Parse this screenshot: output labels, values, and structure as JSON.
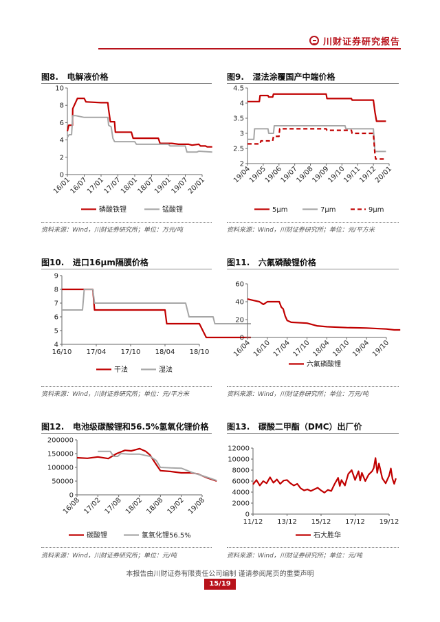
{
  "header": {
    "brand": "川财证券研究报告"
  },
  "footer": {
    "disclaimer": "本报告由川财证券有限责任公司编制 谨请参阅尾页的重要声明",
    "page": "15/19"
  },
  "figures": [
    {
      "id": "fig8",
      "number": "图8.",
      "title": "电解液价格",
      "source": "资料来源：Wind，川财证券研究所；单位：万元/吨"
    },
    {
      "id": "fig9",
      "number": "图9.",
      "title": "湿法涂覆国产中端价格",
      "source": "资料来源：Wind，川财证券研究所；单位：元/平方米"
    },
    {
      "id": "fig10",
      "number": "图10.",
      "title": "进口16μm隔膜价格",
      "source": "资料来源：Wind，川财证券研究所；单位：元/平方米"
    },
    {
      "id": "fig11",
      "number": "图11.",
      "title": "六氟磷酸锂价格",
      "source": "资料来源：Wind，川财证券研究所；单位：万元/吨"
    },
    {
      "id": "fig12",
      "number": "图12.",
      "title": "电池级碳酸锂和56.5%氢氧化锂价格",
      "source": "资料来源：Wind，川财证券研究所；单位：元/吨"
    },
    {
      "id": "fig13",
      "number": "图13.",
      "title": "碳酸二甲酯（DMC）出厂价",
      "source": "资料来源：Wind，川财证券研究所；单位：元/吨"
    }
  ],
  "chart_data": [
    {
      "id": "fig8",
      "type": "line",
      "x_ticks": [
        "16/01",
        "16/07",
        "17/01",
        "17/07",
        "18/01",
        "18/07",
        "19/01",
        "19/07",
        "20/01"
      ],
      "ylim": [
        0,
        10
      ],
      "y_ticks": [
        0,
        2,
        4,
        6,
        8,
        10
      ],
      "legend_position": "bottom",
      "grid": false,
      "series": [
        {
          "name": "磷酸铁锂",
          "color": "#c00000",
          "dash": "solid",
          "points": [
            [
              0,
              5.0
            ],
            [
              0.08,
              5.7
            ],
            [
              0.3,
              5.7
            ],
            [
              0.32,
              7.6
            ],
            [
              0.6,
              8.8
            ],
            [
              1.0,
              8.8
            ],
            [
              1.1,
              8.4
            ],
            [
              2.0,
              8.3
            ],
            [
              2.4,
              8.3
            ],
            [
              2.45,
              7.5
            ],
            [
              2.55,
              6.1
            ],
            [
              2.6,
              6.1
            ],
            [
              2.8,
              6.1
            ],
            [
              2.85,
              4.9
            ],
            [
              3.8,
              4.9
            ],
            [
              3.9,
              4.2
            ],
            [
              4.7,
              4.2
            ],
            [
              5.4,
              4.2
            ],
            [
              5.5,
              3.6
            ],
            [
              6.2,
              3.6
            ],
            [
              6.6,
              3.5
            ],
            [
              7.2,
              3.5
            ],
            [
              7.4,
              3.4
            ],
            [
              7.8,
              3.5
            ],
            [
              7.9,
              3.3
            ],
            [
              8.2,
              3.3
            ],
            [
              8.3,
              3.2
            ],
            [
              8.6,
              3.2
            ]
          ]
        },
        {
          "name": "锰酸锂",
          "color": "#a6a6a6",
          "dash": "solid",
          "points": [
            [
              0,
              4.3
            ],
            [
              0.1,
              4.6
            ],
            [
              0.25,
              4.6
            ],
            [
              0.32,
              6.8
            ],
            [
              0.5,
              6.8
            ],
            [
              1.0,
              6.6
            ],
            [
              2.0,
              6.6
            ],
            [
              2.4,
              6.6
            ],
            [
              2.45,
              5.7
            ],
            [
              2.6,
              5.5
            ],
            [
              2.7,
              4.2
            ],
            [
              2.8,
              3.8
            ],
            [
              4.0,
              3.8
            ],
            [
              4.1,
              3.5
            ],
            [
              6.0,
              3.5
            ],
            [
              6.1,
              3.3
            ],
            [
              7.0,
              3.3
            ],
            [
              7.1,
              2.6
            ],
            [
              7.7,
              2.6
            ],
            [
              7.8,
              2.7
            ],
            [
              8.6,
              2.6
            ]
          ]
        }
      ]
    },
    {
      "id": "fig9",
      "type": "line",
      "x_ticks": [
        "19/04",
        "19/05",
        "19/06",
        "19/07",
        "19/08",
        "19/09",
        "19/10",
        "19/11",
        "19/12",
        "20/01"
      ],
      "ylim": [
        2,
        4.5
      ],
      "y_ticks": [
        2,
        2.5,
        3,
        3.5,
        4,
        4.5
      ],
      "legend_position": "bottom",
      "grid": false,
      "series": [
        {
          "name": "5μm",
          "color": "#c00000",
          "dash": "solid",
          "points": [
            [
              0,
              4.05
            ],
            [
              0.75,
              4.05
            ],
            [
              0.8,
              4.25
            ],
            [
              1.3,
              4.25
            ],
            [
              1.35,
              4.2
            ],
            [
              1.6,
              4.2
            ],
            [
              1.65,
              4.3
            ],
            [
              5.0,
              4.3
            ],
            [
              5.05,
              4.15
            ],
            [
              6.6,
              4.15
            ],
            [
              6.65,
              4.1
            ],
            [
              8.0,
              4.1
            ],
            [
              8.1,
              3.7
            ],
            [
              8.2,
              3.4
            ],
            [
              8.8,
              3.4
            ]
          ]
        },
        {
          "name": "7μm",
          "color": "#a6a6a6",
          "dash": "solid",
          "points": [
            [
              0,
              2.8
            ],
            [
              0.4,
              2.8
            ],
            [
              0.45,
              3.15
            ],
            [
              1.3,
              3.15
            ],
            [
              1.35,
              3.0
            ],
            [
              1.65,
              3.0
            ],
            [
              1.7,
              3.25
            ],
            [
              6.2,
              3.25
            ],
            [
              6.25,
              3.15
            ],
            [
              8.0,
              3.15
            ],
            [
              8.1,
              2.4
            ],
            [
              8.8,
              2.4
            ]
          ]
        },
        {
          "name": "9μm",
          "color": "#c00000",
          "dash": "dash",
          "points": [
            [
              0,
              2.65
            ],
            [
              0.8,
              2.65
            ],
            [
              0.85,
              2.75
            ],
            [
              1.6,
              2.75
            ],
            [
              1.65,
              2.9
            ],
            [
              2.0,
              2.9
            ],
            [
              2.05,
              3.15
            ],
            [
              5.0,
              3.15
            ],
            [
              5.05,
              3.1
            ],
            [
              6.6,
              3.1
            ],
            [
              6.65,
              3.0
            ],
            [
              8.0,
              3.0
            ],
            [
              8.1,
              2.3
            ],
            [
              8.15,
              2.15
            ],
            [
              8.8,
              2.15
            ]
          ]
        }
      ]
    },
    {
      "id": "fig10",
      "type": "line",
      "x_ticks": [
        "16/10",
        "17/04",
        "17/10",
        "18/04",
        "18/10"
      ],
      "ylim": [
        4,
        9
      ],
      "y_ticks": [
        4,
        5,
        6,
        7,
        8,
        9
      ],
      "legend_position": "bottom",
      "grid": false,
      "series": [
        {
          "name": "干法",
          "color": "#c00000",
          "dash": "solid",
          "points": [
            [
              0,
              8
            ],
            [
              0.9,
              8
            ],
            [
              0.95,
              6.5
            ],
            [
              3.0,
              6.5
            ],
            [
              3.05,
              5.5
            ],
            [
              4.0,
              5.5
            ],
            [
              4.2,
              4.5
            ],
            [
              5.5,
              4.5
            ]
          ]
        },
        {
          "name": "湿法",
          "color": "#a6a6a6",
          "dash": "solid",
          "points": [
            [
              0,
              6.5
            ],
            [
              0.6,
              6.5
            ],
            [
              0.65,
              8
            ],
            [
              0.9,
              8
            ],
            [
              0.95,
              7.0
            ],
            [
              3.6,
              7.0
            ],
            [
              3.7,
              6.0
            ],
            [
              4.4,
              6.0
            ],
            [
              4.45,
              5.5
            ],
            [
              5.5,
              5.5
            ]
          ]
        }
      ]
    },
    {
      "id": "fig11",
      "type": "line",
      "x_ticks": [
        "16/04",
        "16/10",
        "17/04",
        "17/10",
        "18/04",
        "18/10",
        "19/04",
        "19/10"
      ],
      "ylim": [
        0,
        60
      ],
      "y_ticks": [
        0,
        20,
        40,
        60
      ],
      "legend_position": "bottom",
      "grid": false,
      "series": [
        {
          "name": "六氟磷酸锂",
          "color": "#c00000",
          "dash": "solid",
          "points": [
            [
              0,
              43
            ],
            [
              0.2,
              42
            ],
            [
              0.6,
              40
            ],
            [
              0.8,
              37
            ],
            [
              1.0,
              40
            ],
            [
              1.6,
              40
            ],
            [
              1.7,
              34
            ],
            [
              1.8,
              32
            ],
            [
              1.9,
              24
            ],
            [
              2.0,
              19
            ],
            [
              2.2,
              17
            ],
            [
              3.0,
              16
            ],
            [
              3.5,
              13
            ],
            [
              4.0,
              12
            ],
            [
              5.0,
              11
            ],
            [
              6.0,
              10.5
            ],
            [
              7.0,
              9.5
            ],
            [
              7.4,
              8.5
            ],
            [
              7.7,
              8.5
            ]
          ]
        }
      ]
    },
    {
      "id": "fig12",
      "type": "line",
      "x_ticks": [
        "16/08",
        "17/02",
        "17/08",
        "18/02",
        "18/08",
        "19/02",
        "19/08"
      ],
      "ylim": [
        0,
        200000
      ],
      "y_ticks": [
        0,
        50000,
        100000,
        150000,
        200000
      ],
      "legend_position": "bottom",
      "grid": false,
      "series": [
        {
          "name": "碳酸锂",
          "color": "#c00000",
          "dash": "solid",
          "points": [
            [
              0,
              135000
            ],
            [
              0.5,
              133000
            ],
            [
              1.0,
              138000
            ],
            [
              1.5,
              132000
            ],
            [
              1.9,
              150000
            ],
            [
              2.3,
              162000
            ],
            [
              2.6,
              160000
            ],
            [
              3.0,
              168000
            ],
            [
              3.3,
              158000
            ],
            [
              3.5,
              145000
            ],
            [
              3.8,
              110000
            ],
            [
              4.0,
              88000
            ],
            [
              4.5,
              85000
            ],
            [
              5.0,
              80000
            ],
            [
              5.5,
              80000
            ],
            [
              5.8,
              76000
            ],
            [
              6.2,
              63000
            ],
            [
              6.7,
              50000
            ]
          ]
        },
        {
          "name": "氢氧化锂56.5%",
          "color": "#a6a6a6",
          "dash": "solid",
          "points": [
            [
              1.0,
              158000
            ],
            [
              1.6,
              158000
            ],
            [
              1.75,
              140000
            ],
            [
              1.95,
              140000
            ],
            [
              2.1,
              150000
            ],
            [
              2.5,
              148000
            ],
            [
              3.0,
              148000
            ],
            [
              3.5,
              140000
            ],
            [
              3.8,
              125000
            ],
            [
              4.0,
              100000
            ],
            [
              4.5,
              98000
            ],
            [
              5.0,
              97000
            ],
            [
              5.5,
              82000
            ],
            [
              6.0,
              70000
            ],
            [
              6.4,
              60000
            ],
            [
              6.7,
              52000
            ]
          ]
        }
      ]
    },
    {
      "id": "fig13",
      "type": "line",
      "x_ticks": [
        "11/12",
        "13/12",
        "15/12",
        "17/12",
        "19/12"
      ],
      "ylim": [
        0,
        12000
      ],
      "y_ticks": [
        0,
        2000,
        4000,
        6000,
        8000,
        10000,
        12000
      ],
      "legend_position": "bottom",
      "grid": false,
      "series": [
        {
          "name": "石大胜华",
          "color": "#c00000",
          "dash": "solid",
          "points": [
            [
              0,
              5400
            ],
            [
              0.1,
              6200
            ],
            [
              0.2,
              5200
            ],
            [
              0.3,
              6000
            ],
            [
              0.4,
              5600
            ],
            [
              0.5,
              6700
            ],
            [
              0.6,
              5700
            ],
            [
              0.7,
              6300
            ],
            [
              0.8,
              5500
            ],
            [
              0.9,
              6100
            ],
            [
              1.0,
              6200
            ],
            [
              1.1,
              5600
            ],
            [
              1.2,
              5200
            ],
            [
              1.3,
              5500
            ],
            [
              1.4,
              4700
            ],
            [
              1.5,
              4300
            ],
            [
              1.6,
              4500
            ],
            [
              1.7,
              4200
            ],
            [
              1.8,
              4500
            ],
            [
              1.9,
              4800
            ],
            [
              2.0,
              4300
            ],
            [
              2.1,
              3900
            ],
            [
              2.2,
              4400
            ],
            [
              2.3,
              4200
            ],
            [
              2.4,
              5500
            ],
            [
              2.5,
              6600
            ],
            [
              2.55,
              5100
            ],
            [
              2.6,
              6200
            ],
            [
              2.7,
              5200
            ],
            [
              2.8,
              7300
            ],
            [
              2.9,
              8000
            ],
            [
              3.0,
              6200
            ],
            [
              3.1,
              7800
            ],
            [
              3.15,
              6100
            ],
            [
              3.2,
              7500
            ],
            [
              3.3,
              6000
            ],
            [
              3.4,
              7200
            ],
            [
              3.5,
              7800
            ],
            [
              3.55,
              8400
            ],
            [
              3.6,
              10200
            ],
            [
              3.65,
              7500
            ],
            [
              3.7,
              9200
            ],
            [
              3.8,
              6500
            ],
            [
              3.9,
              5600
            ],
            [
              4.0,
              7000
            ],
            [
              4.05,
              8300
            ],
            [
              4.1,
              6400
            ],
            [
              4.15,
              5500
            ],
            [
              4.2,
              6500
            ]
          ]
        }
      ]
    }
  ]
}
